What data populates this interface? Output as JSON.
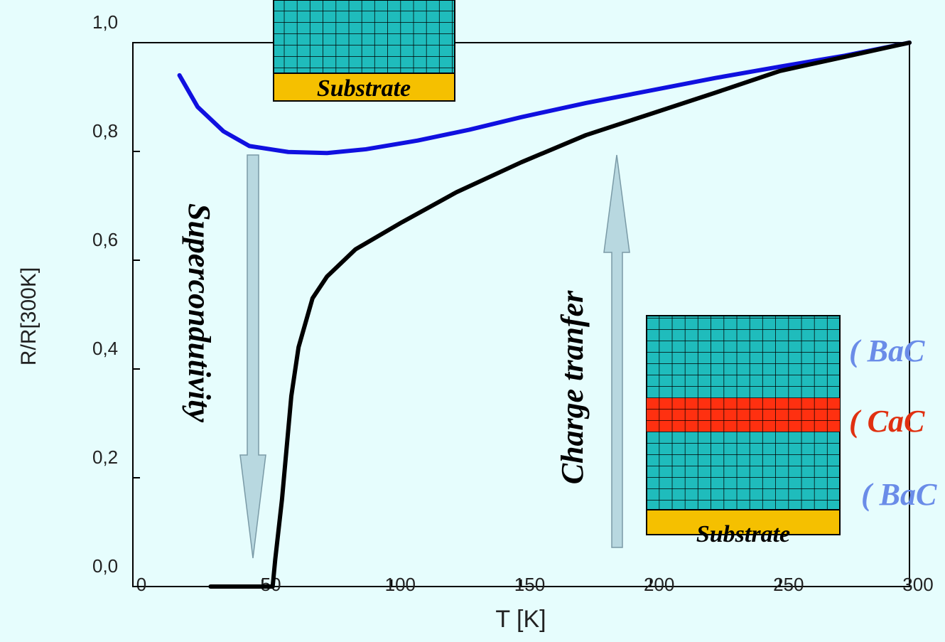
{
  "chart_data": {
    "type": "line",
    "xlabel": "T [K]",
    "ylabel": "R/R[300K]",
    "xlim": [
      0,
      300
    ],
    "ylim": [
      0,
      1
    ],
    "xticks": [
      0,
      50,
      100,
      150,
      200,
      250,
      300
    ],
    "yticks": [
      {
        "value": 0,
        "label": "0,0"
      },
      {
        "value": 0.2,
        "label": "0,2"
      },
      {
        "value": 0.4,
        "label": "0,4"
      },
      {
        "value": 0.6,
        "label": "0,6"
      },
      {
        "value": 0.8,
        "label": "0,8"
      },
      {
        "value": 1,
        "label": "1,0"
      }
    ],
    "series": [
      {
        "color": "#1010e0",
        "x": [
          18,
          25,
          35,
          45,
          60,
          75,
          90,
          110,
          130,
          150,
          175,
          200,
          225,
          250,
          275,
          300
        ],
        "values": [
          0.94,
          0.882,
          0.837,
          0.81,
          0.799,
          0.797,
          0.804,
          0.82,
          0.84,
          0.863,
          0.889,
          0.912,
          0.935,
          0.956,
          0.976,
          1.0
        ]
      },
      {
        "color": "#000000",
        "x": [
          30,
          50,
          54,
          55,
          57.6,
          61.2,
          64,
          69.4,
          75,
          86,
          104,
          125,
          150,
          175,
          200,
          225,
          250,
          275,
          300
        ],
        "values": [
          0,
          0,
          0,
          0.05,
          0.16,
          0.35,
          0.44,
          0.53,
          0.57,
          0.62,
          0.67,
          0.725,
          0.78,
          0.83,
          0.869,
          0.908,
          0.948,
          0.974,
          1.0
        ]
      }
    ],
    "annotations": {
      "superconductivity": "Supercondutivity",
      "charge_transfer": "Charge tranfer",
      "substrate_top": "Substrate",
      "substrate_bottom": "Substrate",
      "layer_1": "( BaC",
      "layer_2": "( CaC",
      "layer_3": "( BaC"
    }
  }
}
